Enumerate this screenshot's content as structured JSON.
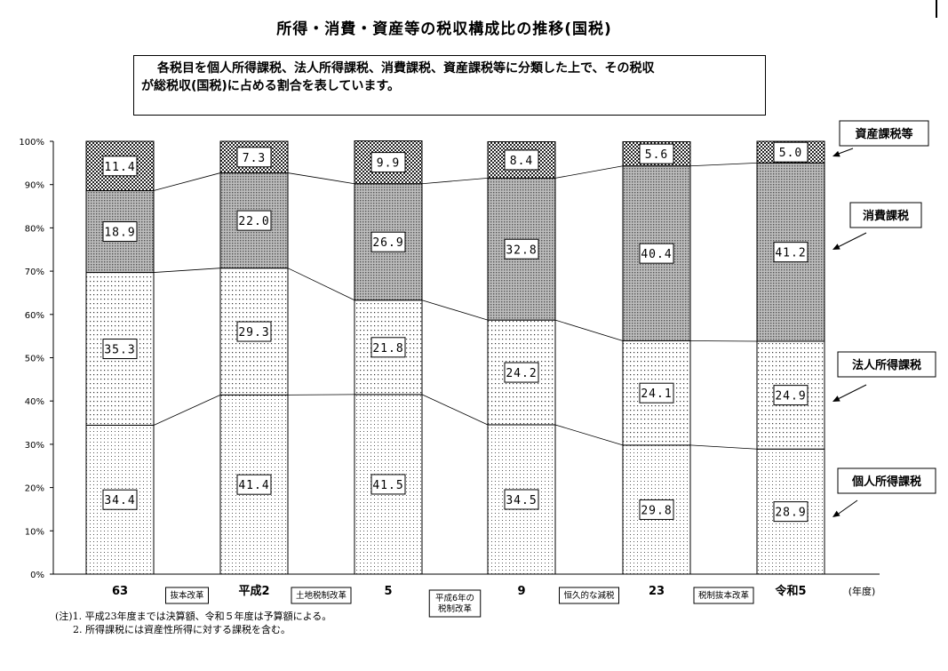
{
  "title": "所得・消費・資産等の税収構成比の推移(国税)",
  "description": [
    "各税目を個人所得課税、法人所得課税、消費課税、資産課税等に分類した上で、その税収",
    "が総税収(国税)に占める割合を表しています。"
  ],
  "notes": [
    "(注)1.  平成23年度までは決算額、令和５年度は予算額による。",
    "2.  所得課税には資産性所得に対する課税を含む。"
  ],
  "chart_data": {
    "type": "bar",
    "stacked": true,
    "categories": [
      "63",
      "平成2",
      "5",
      "9",
      "23",
      "令和5"
    ],
    "xlabel": "(年度)",
    "ylim": [
      0,
      100
    ],
    "yticks": [
      "0%",
      "10%",
      "20%",
      "30%",
      "40%",
      "50%",
      "60%",
      "70%",
      "80%",
      "90%",
      "100%"
    ],
    "series": [
      {
        "name": "個人所得課税",
        "values": [
          34.4,
          41.4,
          41.5,
          34.5,
          29.8,
          28.9
        ],
        "value_labels": [
          "34.4",
          "41.4",
          "41.5",
          "34.5",
          "29.8",
          "28.9"
        ],
        "pattern": "fine-dots"
      },
      {
        "name": "法人所得課税",
        "values": [
          35.3,
          29.3,
          21.8,
          24.2,
          24.1,
          24.9
        ],
        "value_labels": [
          "35.3",
          "29.3",
          "21.8",
          "24.2",
          "24.1",
          "24.9"
        ],
        "pattern": "dots"
      },
      {
        "name": "消費課税",
        "values": [
          18.9,
          22.0,
          26.9,
          32.8,
          40.4,
          41.2
        ],
        "value_labels": [
          "18.9",
          "22.0",
          "26.9",
          "32.8",
          "40.4",
          "41.2"
        ],
        "pattern": "dense-dots"
      },
      {
        "name": "資産課税等",
        "values": [
          11.4,
          7.3,
          9.9,
          8.4,
          5.6,
          5.0
        ],
        "value_labels": [
          "11.4",
          "7.3",
          "9.9",
          "8.4",
          "5.6",
          "5.0"
        ],
        "pattern": "checker"
      }
    ],
    "legend_position": "right",
    "annotations": [
      {
        "text": "抜本改革",
        "between": [
          0,
          1
        ]
      },
      {
        "text": "土地税制改革",
        "between": [
          1,
          2
        ]
      },
      {
        "text": "平成6年の\n税制改革",
        "between": [
          2,
          3
        ]
      },
      {
        "text": "恒久的な減税",
        "between": [
          3,
          4
        ]
      },
      {
        "text": "税制抜本改革",
        "between": [
          4,
          5
        ]
      }
    ],
    "grid": false,
    "connector_lines": true
  }
}
